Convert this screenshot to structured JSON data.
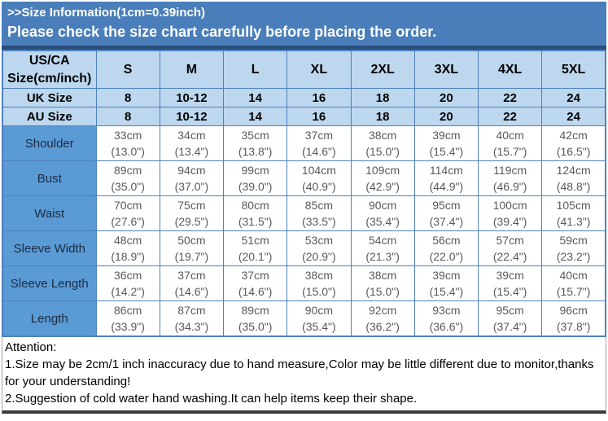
{
  "banner": {
    "line1": ">>Size Information(1cm=0.39inch)",
    "line2": "Please check the size chart carefully before placing the order."
  },
  "colors": {
    "banner_bg": "#4A7EBB",
    "banner_text": "#FFFFFF",
    "banner_edge": "#2B4E79",
    "header_bg": "#BDD7EE",
    "label_bg": "#5B9BD5",
    "grid_border": "#4F81BD",
    "header_text": "#000000",
    "label_text": "#1B2A41",
    "data_text": "#595959",
    "bottom_bar": "#3B3B3B"
  },
  "table": {
    "corner_line1": "US/CA",
    "corner_line2": "Size(cm/inch)",
    "sizes": [
      "S",
      "M",
      "L",
      "XL",
      "2XL",
      "3XL",
      "4XL",
      "5XL"
    ],
    "std_rows": [
      {
        "label": "UK Size",
        "values": [
          "8",
          "10-12",
          "14",
          "16",
          "18",
          "20",
          "22",
          "24"
        ]
      },
      {
        "label": "AU Size",
        "values": [
          "8",
          "10-12",
          "14",
          "16",
          "18",
          "20",
          "22",
          "24"
        ]
      }
    ],
    "measure_rows": [
      {
        "label": "Shoulder",
        "cm": [
          "33cm",
          "34cm",
          "35cm",
          "37cm",
          "38cm",
          "39cm",
          "40cm",
          "42cm"
        ],
        "inch": [
          "(13.0\")",
          "(13.4\")",
          "(13.8\")",
          "(14.6\")",
          "(15.0\")",
          "(15.4\")",
          "(15.7\")",
          "(16.5\")"
        ]
      },
      {
        "label": "Bust",
        "cm": [
          "89cm",
          "94cm",
          "99cm",
          "104cm",
          "109cm",
          "114cm",
          "119cm",
          "124cm"
        ],
        "inch": [
          "(35.0\")",
          "(37.0\")",
          "(39.0\")",
          "(40.9\")",
          "(42.9\")",
          "(44.9\")",
          "(46.9\")",
          "(48.8\")"
        ]
      },
      {
        "label": "Waist",
        "cm": [
          "70cm",
          "75cm",
          "80cm",
          "85cm",
          "90cm",
          "95cm",
          "100cm",
          "105cm"
        ],
        "inch": [
          "(27.6\")",
          "(29.5\")",
          "(31.5\")",
          "(33.5\")",
          "(35.4\")",
          "(37.4\")",
          "(39.4\")",
          "(41.3\")"
        ]
      },
      {
        "label": "Sleeve Width",
        "cm": [
          "48cm",
          "50cm",
          "51cm",
          "53cm",
          "54cm",
          "56cm",
          "57cm",
          "59cm"
        ],
        "inch": [
          "(18.9\")",
          "(19.7\")",
          "(20.1\")",
          "(20.9\")",
          "(21.3\")",
          "(22.0\")",
          "(22.4\")",
          "(23.2\")"
        ]
      },
      {
        "label": "Sleeve Length",
        "cm": [
          "36cm",
          "37cm",
          "37cm",
          "38cm",
          "38cm",
          "39cm",
          "39cm",
          "40cm"
        ],
        "inch": [
          "(14.2\")",
          "(14.6\")",
          "(14.6\")",
          "(15.0\")",
          "(15.0\")",
          "(15.4\")",
          "(15.4\")",
          "(15.7\")"
        ]
      },
      {
        "label": "Length",
        "cm": [
          "86cm",
          "87cm",
          "89cm",
          "90cm",
          "92cm",
          "93cm",
          "95cm",
          "96cm"
        ],
        "inch": [
          "(33.9\")",
          "(34.3\")",
          "(35.0\")",
          "(35.4\")",
          "(36.2\")",
          "(36.6\")",
          "(37.4\")",
          "(37.8\")"
        ]
      }
    ]
  },
  "attention": {
    "title": "Attention:",
    "notes": [
      "1.Size may be 2cm/1 inch inaccuracy due to hand measure,Color may be little different due to monitor,thanks for your understanding!",
      "2.Suggestion of cold water hand washing.It can help items keep their shape."
    ]
  }
}
